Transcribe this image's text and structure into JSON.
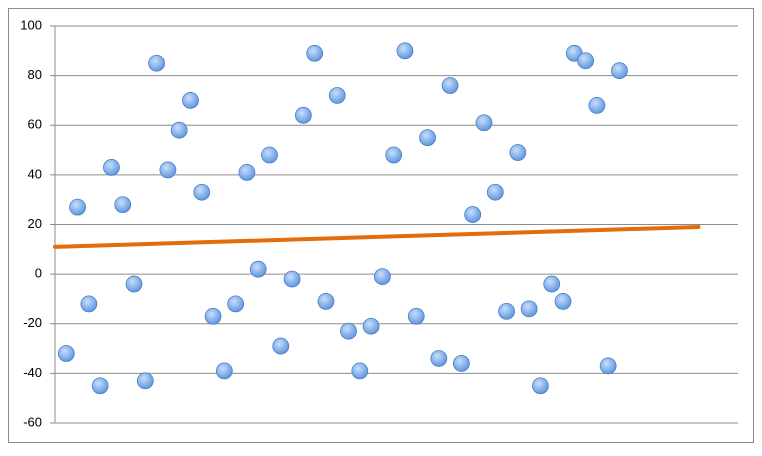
{
  "chart_data": {
    "type": "scatter",
    "x": [
      1,
      2,
      3,
      4,
      5,
      6,
      7,
      8,
      9,
      10,
      11,
      12,
      13,
      14,
      15,
      16,
      17,
      18,
      19,
      20,
      21,
      22,
      23,
      24,
      25,
      26,
      27,
      28,
      29,
      30,
      31,
      32,
      33,
      34,
      35,
      36,
      37,
      38,
      39,
      40,
      41,
      42,
      43,
      44,
      45,
      46,
      47,
      48,
      49,
      50
    ],
    "series": [
      {
        "color": "#7fb0ea",
        "values": [
          -32,
          27,
          -12,
          -45,
          43,
          28,
          -4,
          -43,
          85,
          42,
          58,
          70,
          33,
          -17,
          -39,
          -12,
          41,
          2,
          48,
          -29,
          -2,
          64,
          89,
          -11,
          72,
          -23,
          -39,
          -21,
          -1,
          48,
          90,
          -17,
          55,
          -34,
          76,
          -36,
          24,
          61,
          33,
          -15,
          49,
          -14,
          -45,
          -4,
          -11,
          89,
          86,
          68,
          -37,
          82
        ]
      }
    ],
    "trendline": {
      "x": [
        0,
        57
      ],
      "y": [
        11,
        19
      ],
      "color": "#e46c0a"
    },
    "xlim": [
      0,
      60.5
    ],
    "ylim": [
      -60,
      100
    ],
    "yticks": [
      -60,
      -40,
      -20,
      0,
      20,
      40,
      60,
      80,
      100
    ],
    "grid": true
  }
}
